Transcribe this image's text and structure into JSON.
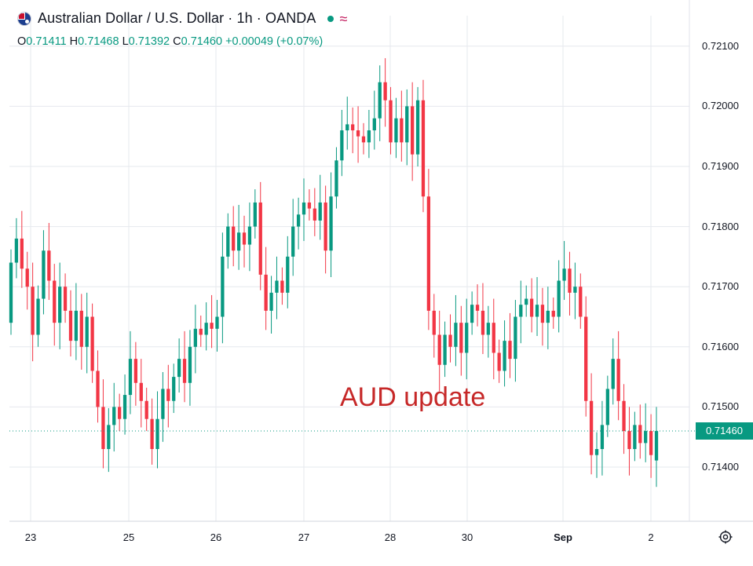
{
  "header": {
    "symbol_title": "Australian Dollar / U.S. Dollar · 1h · OANDA",
    "status_color": "#089981",
    "wave_glyph": "≈",
    "flag_icon": "australia-flag-icon"
  },
  "ohlc": {
    "o_label": "O",
    "o_value": "0.71411",
    "h_label": "H",
    "h_value": "0.71468",
    "l_label": "L",
    "l_value": "0.71392",
    "c_label": "C",
    "c_value": "0.71460",
    "change": "+0.00049 (+0.07%)"
  },
  "annotation": "AUD update",
  "last_price": "0.71460",
  "colors": {
    "up": "#089981",
    "down": "#f23645",
    "grid": "#e6e8ee",
    "annotation": "#c62828"
  },
  "chart_data": {
    "type": "candlestick",
    "title": "Australian Dollar / U.S. Dollar · 1h · OANDA",
    "ylim": [
      0.7131,
      0.7212
    ],
    "y_ticks": [
      "0.71400",
      "0.71500",
      "0.71600",
      "0.71700",
      "0.71800",
      "0.71900",
      "0.72000",
      "0.72100"
    ],
    "y_tick_values": [
      0.714,
      0.715,
      0.716,
      0.717,
      0.718,
      0.719,
      0.72,
      0.721
    ],
    "x_ticks": [
      "23",
      "25",
      "26",
      "27",
      "28",
      "30",
      "Sep",
      "2"
    ],
    "last_price": 0.7146,
    "grid": true,
    "candles": [
      [
        0.7164,
        0.7174
      ],
      [
        0.7174,
        0.7178
      ],
      [
        0.7178,
        0.7173
      ],
      [
        0.7173,
        0.717
      ],
      [
        0.717,
        0.7162
      ],
      [
        0.7162,
        0.7168
      ],
      [
        0.7168,
        0.7176
      ],
      [
        0.7176,
        0.7171
      ],
      [
        0.7171,
        0.7164
      ],
      [
        0.7164,
        0.717
      ],
      [
        0.717,
        0.7166
      ],
      [
        0.7166,
        0.7161
      ],
      [
        0.7161,
        0.7166
      ],
      [
        0.7166,
        0.716
      ],
      [
        0.716,
        0.7165
      ],
      [
        0.7165,
        0.7156
      ],
      [
        0.7156,
        0.715
      ],
      [
        0.715,
        0.7143
      ],
      [
        0.7143,
        0.7147
      ],
      [
        0.7147,
        0.715
      ],
      [
        0.715,
        0.7148
      ],
      [
        0.7148,
        0.7152
      ],
      [
        0.7152,
        0.7158
      ],
      [
        0.7158,
        0.7154
      ],
      [
        0.7154,
        0.7151
      ],
      [
        0.7151,
        0.7148
      ],
      [
        0.7148,
        0.7143
      ],
      [
        0.7143,
        0.7148
      ],
      [
        0.7148,
        0.7153
      ],
      [
        0.7153,
        0.7151
      ],
      [
        0.7151,
        0.7155
      ],
      [
        0.7155,
        0.7158
      ],
      [
        0.7158,
        0.7154
      ],
      [
        0.7154,
        0.716
      ],
      [
        0.716,
        0.7163
      ],
      [
        0.7163,
        0.7162
      ],
      [
        0.7162,
        0.7164
      ],
      [
        0.7164,
        0.7163
      ],
      [
        0.7163,
        0.7165
      ],
      [
        0.7165,
        0.7175
      ],
      [
        0.7175,
        0.718
      ],
      [
        0.718,
        0.7176
      ],
      [
        0.7176,
        0.7179
      ],
      [
        0.7179,
        0.7177
      ],
      [
        0.7177,
        0.718
      ],
      [
        0.718,
        0.7184
      ],
      [
        0.7184,
        0.7172
      ],
      [
        0.7172,
        0.7166
      ],
      [
        0.7166,
        0.7169
      ],
      [
        0.7169,
        0.7171
      ],
      [
        0.7171,
        0.7169
      ],
      [
        0.7169,
        0.7175
      ],
      [
        0.7175,
        0.718
      ],
      [
        0.718,
        0.7182
      ],
      [
        0.7182,
        0.7184
      ],
      [
        0.7184,
        0.7183
      ],
      [
        0.7183,
        0.7181
      ],
      [
        0.7181,
        0.7184
      ],
      [
        0.7184,
        0.7176
      ],
      [
        0.7176,
        0.7185
      ],
      [
        0.7185,
        0.7191
      ],
      [
        0.7191,
        0.7196
      ],
      [
        0.7196,
        0.7197
      ],
      [
        0.7197,
        0.7196
      ],
      [
        0.7196,
        0.7195
      ],
      [
        0.7195,
        0.7194
      ],
      [
        0.7194,
        0.7196
      ],
      [
        0.7196,
        0.7198
      ],
      [
        0.7198,
        0.7204
      ],
      [
        0.7204,
        0.7201
      ],
      [
        0.7201,
        0.7194
      ],
      [
        0.7194,
        0.7198
      ],
      [
        0.7198,
        0.7194
      ],
      [
        0.7194,
        0.72
      ],
      [
        0.72,
        0.7192
      ],
      [
        0.7192,
        0.7201
      ],
      [
        0.7201,
        0.7185
      ],
      [
        0.7185,
        0.7166
      ],
      [
        0.7166,
        0.7162
      ],
      [
        0.7162,
        0.7157
      ],
      [
        0.7157,
        0.7162
      ],
      [
        0.7162,
        0.716
      ],
      [
        0.716,
        0.7164
      ],
      [
        0.7164,
        0.7159
      ],
      [
        0.7159,
        0.7164
      ],
      [
        0.7164,
        0.7167
      ],
      [
        0.7167,
        0.7166
      ],
      [
        0.7166,
        0.7162
      ],
      [
        0.7162,
        0.7164
      ],
      [
        0.7164,
        0.7159
      ],
      [
        0.7159,
        0.7156
      ],
      [
        0.7156,
        0.7161
      ],
      [
        0.7161,
        0.7158
      ],
      [
        0.7158,
        0.7165
      ],
      [
        0.7165,
        0.7167
      ],
      [
        0.7167,
        0.7168
      ],
      [
        0.7168,
        0.7165
      ],
      [
        0.7165,
        0.7167
      ],
      [
        0.7167,
        0.7164
      ],
      [
        0.7164,
        0.7166
      ],
      [
        0.7166,
        0.7165
      ],
      [
        0.7165,
        0.7171
      ],
      [
        0.7171,
        0.7173
      ],
      [
        0.7173,
        0.7169
      ],
      [
        0.7169,
        0.717
      ],
      [
        0.717,
        0.7165
      ],
      [
        0.7165,
        0.7151
      ],
      [
        0.7151,
        0.7142
      ],
      [
        0.7142,
        0.7143
      ],
      [
        0.7143,
        0.7147
      ],
      [
        0.7147,
        0.7153
      ],
      [
        0.7153,
        0.7158
      ],
      [
        0.7158,
        0.7151
      ],
      [
        0.7151,
        0.7146
      ],
      [
        0.7146,
        0.7143
      ],
      [
        0.7143,
        0.7147
      ],
      [
        0.7147,
        0.7144
      ],
      [
        0.7144,
        0.7146
      ],
      [
        0.7146,
        0.7142
      ],
      [
        0.71411,
        0.7146
      ]
    ]
  }
}
